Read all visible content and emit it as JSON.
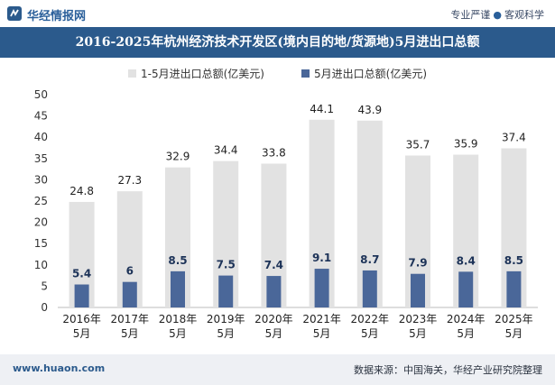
{
  "header": {
    "site_name": "华经情报网",
    "tagline_left": "专业严谨",
    "tagline_right": "客观科学"
  },
  "footer": {
    "url": "www.huaon.com",
    "source": "数据来源：中国海关，华经产业研究院整理"
  },
  "colors": {
    "total_bar": "#e2e2e2",
    "may_bar": "#4a6799",
    "title_bg": "#2b5a8c"
  },
  "chart_data": {
    "type": "bar",
    "title": "2016-2025年杭州经济技术开发区(境内目的地/货源地)5月进出口总额",
    "xlabel": "",
    "ylabel": "",
    "ylim": [
      0,
      50
    ],
    "yticks": [
      0,
      5,
      10,
      15,
      20,
      25,
      30,
      35,
      40,
      45,
      50
    ],
    "grid": false,
    "legend_position": "top",
    "categories": [
      [
        "2016年",
        "5月"
      ],
      [
        "2017年",
        "5月"
      ],
      [
        "2018年",
        "5月"
      ],
      [
        "2019年",
        "5月"
      ],
      [
        "2020年",
        "5月"
      ],
      [
        "2021年",
        "5月"
      ],
      [
        "2022年",
        "5月"
      ],
      [
        "2023年",
        "5月"
      ],
      [
        "2024年",
        "5月"
      ],
      [
        "2025年",
        "5月"
      ]
    ],
    "series": [
      {
        "name": "1-5月进出口总额(亿美元)",
        "values": [
          24.8,
          27.3,
          32.9,
          34.4,
          33.8,
          44.1,
          43.9,
          35.7,
          35.9,
          37.4
        ]
      },
      {
        "name": "5月进出口总额(亿美元)",
        "values": [
          5.4,
          6,
          8.5,
          7.5,
          7.4,
          9.1,
          8.7,
          7.9,
          8.4,
          8.5
        ]
      }
    ]
  }
}
